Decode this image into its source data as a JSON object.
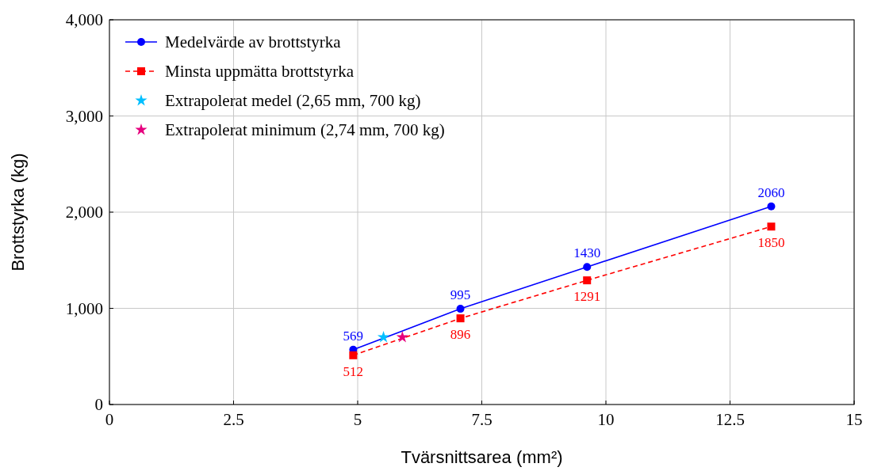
{
  "chart_data": {
    "type": "line",
    "xlabel": "Tvärsnittsarea (mm²)",
    "ylabel": "Brottstyrka (kg)",
    "xlim": [
      0,
      15
    ],
    "ylim": [
      0,
      4000
    ],
    "xticks": [
      0,
      2.5,
      5,
      7.5,
      10,
      12.5,
      15
    ],
    "yticks": [
      {
        "value": 0,
        "label": "0"
      },
      {
        "value": 1000,
        "label": "1,000"
      },
      {
        "value": 2000,
        "label": "2,000"
      },
      {
        "value": 3000,
        "label": "3,000"
      },
      {
        "value": 4000,
        "label": "4,000"
      }
    ],
    "grid": true,
    "legend": "top left",
    "series": [
      {
        "name": "Medelvärde av brottstyrka",
        "color": "#0000ff",
        "marker": "circle",
        "line_style": "solid",
        "x": [
          4.91,
          7.07,
          9.62,
          13.33
        ],
        "values": [
          569,
          995,
          1430,
          2060
        ],
        "value_labels": [
          "569",
          "995",
          "1430",
          "2060"
        ]
      },
      {
        "name": "Minsta uppmätta brottstyrka",
        "color": "#ff0000",
        "marker": "square",
        "line_style": "dashed",
        "x": [
          4.91,
          7.07,
          9.62,
          13.33
        ],
        "values": [
          512,
          896,
          1291,
          1850
        ],
        "value_labels": [
          "512",
          "896",
          "1291",
          "1850"
        ]
      },
      {
        "name": "Extrapolerat medel (2,65 mm, 700 kg)",
        "type": "scatter",
        "color": "#00bfff",
        "marker": "star",
        "x": [
          5.52
        ],
        "values": [
          700
        ]
      },
      {
        "name": "Extrapolerat minimum (2,74 mm, 700 kg)",
        "type": "scatter",
        "color": "#e6007e",
        "marker": "star",
        "x": [
          5.9
        ],
        "values": [
          700
        ]
      }
    ]
  }
}
